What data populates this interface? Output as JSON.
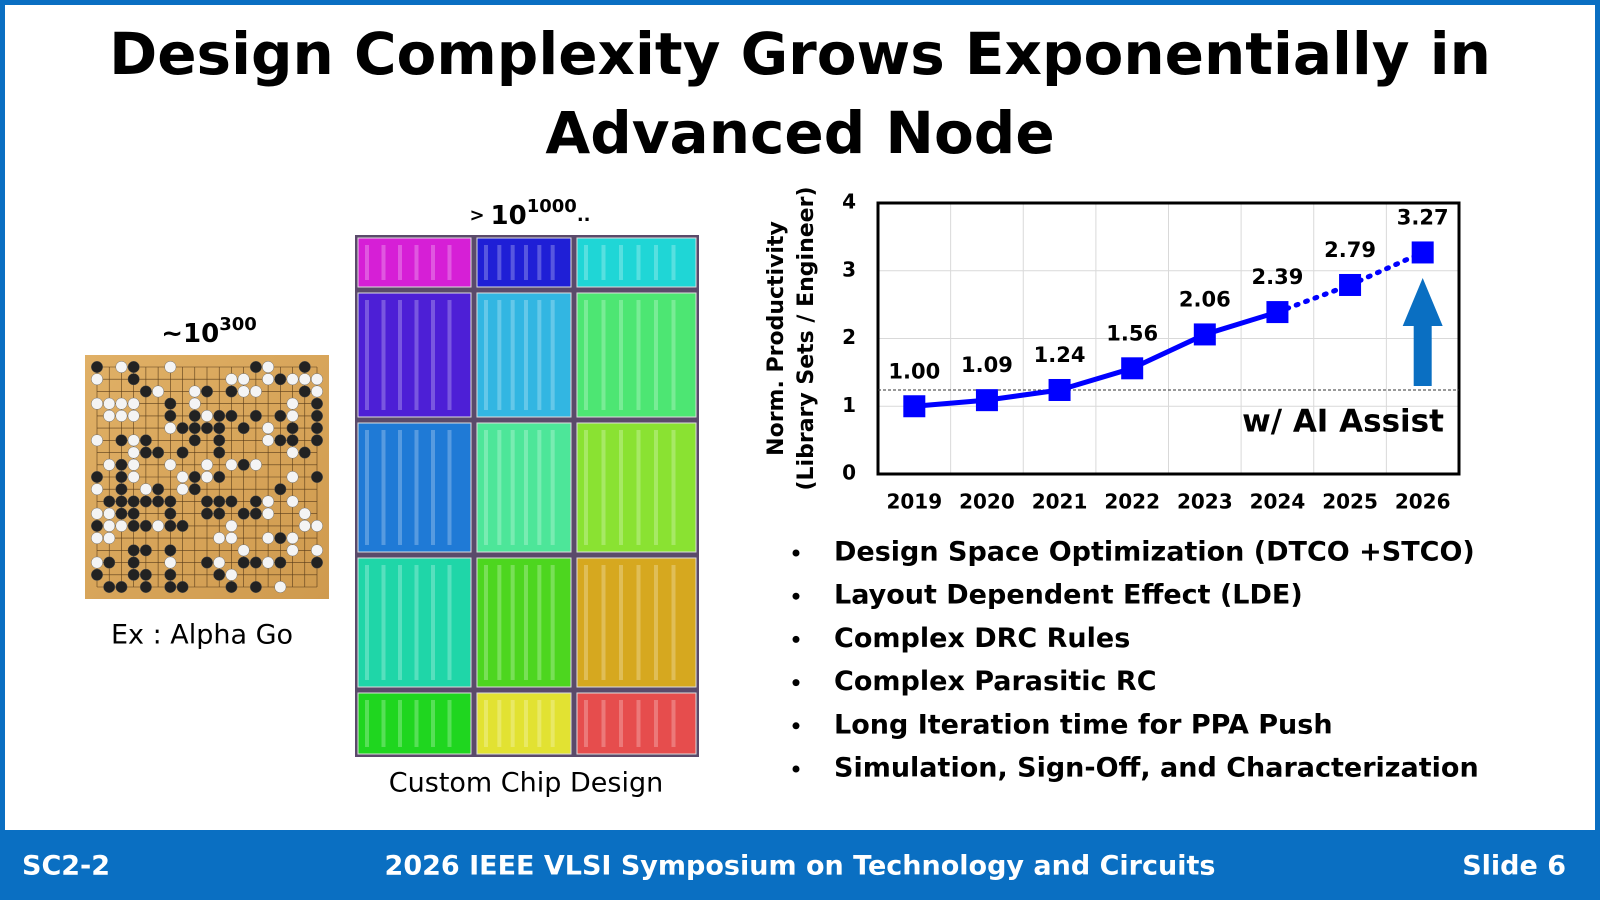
{
  "header": {
    "title": [
      "Design Complexity Grows Exponentially in",
      "Advanced Node"
    ]
  },
  "left": {
    "go": {
      "base": "~10",
      "exponent": "300",
      "caption": "Ex : Alpha Go"
    },
    "chip": {
      "prefix": ">",
      "base": "10",
      "exponent": "1000",
      "suffix": "..",
      "caption": "Custom Chip Design"
    }
  },
  "chart_data": {
    "type": "line",
    "ylabel": [
      "Norm. Productivity",
      "(Library Sets / Engineer)"
    ],
    "categories": [
      "2019",
      "2020",
      "2021",
      "2022",
      "2023",
      "2024",
      "2025",
      "2026"
    ],
    "values": [
      1.0,
      1.09,
      1.24,
      1.56,
      2.06,
      2.39,
      2.79,
      3.27
    ],
    "value_labels": [
      "1.00",
      "1.09",
      "1.24",
      "1.56",
      "2.06",
      "2.39",
      "2.79",
      "3.27"
    ],
    "color": "#0000ff",
    "marker": "square",
    "segment_styles": [
      "solid",
      "solid",
      "solid",
      "solid",
      "solid",
      "dotted",
      "dotted"
    ],
    "reference_line": 1.24,
    "annotation": "w/ AI Assist",
    "annotation_color": "#1a72c7",
    "ylim": [
      0,
      4
    ],
    "yticks": [
      0,
      1,
      2,
      3,
      4
    ],
    "grid": true
  },
  "bullets": [
    "Design Space Optimization (DTCO +STCO)",
    "Layout Dependent Effect (LDE)",
    "Complex DRC Rules",
    "Complex Parasitic RC",
    "Long Iteration time for PPA Push",
    "Simulation, Sign-Off, and Characterization"
  ],
  "footer": {
    "left": "SC2-2",
    "center": "2026 IEEE VLSI Symposium on Technology and Circuits",
    "right": "Slide 6"
  }
}
